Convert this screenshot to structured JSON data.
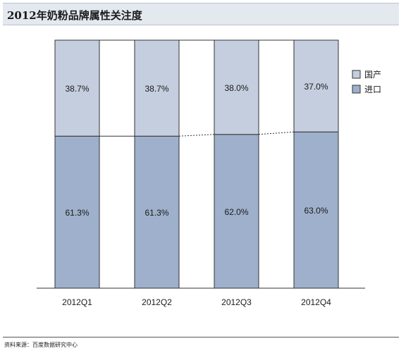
{
  "title": "2012年奶粉品牌属性关注度",
  "source": "资料来源：百度数据研究中心",
  "colors": {
    "domestic": "#c5cedf",
    "imported": "#9eb0cb",
    "border": "#333333",
    "connector": "#333333",
    "title_bg": "#e4e8ef"
  },
  "chart_data": {
    "type": "bar",
    "stacked": true,
    "percent": true,
    "categories": [
      "2012Q1",
      "2012Q2",
      "2012Q3",
      "2012Q4"
    ],
    "series": [
      {
        "name": "进口",
        "values": [
          61.3,
          61.3,
          62.0,
          63.0
        ],
        "labels": [
          "61.3%",
          "61.3%",
          "62.0%",
          "63.0%"
        ]
      },
      {
        "name": "国产",
        "values": [
          38.7,
          38.7,
          38.0,
          37.0
        ],
        "labels": [
          "38.7%",
          "38.7%",
          "38.0%",
          "37.0%"
        ]
      }
    ],
    "legend": {
      "position": "right",
      "entries": [
        "国产",
        "进口"
      ]
    },
    "ylim": [
      0,
      100
    ],
    "title": "2012年奶粉品牌属性关注度",
    "xlabel": "",
    "ylabel": "",
    "grid": false
  }
}
